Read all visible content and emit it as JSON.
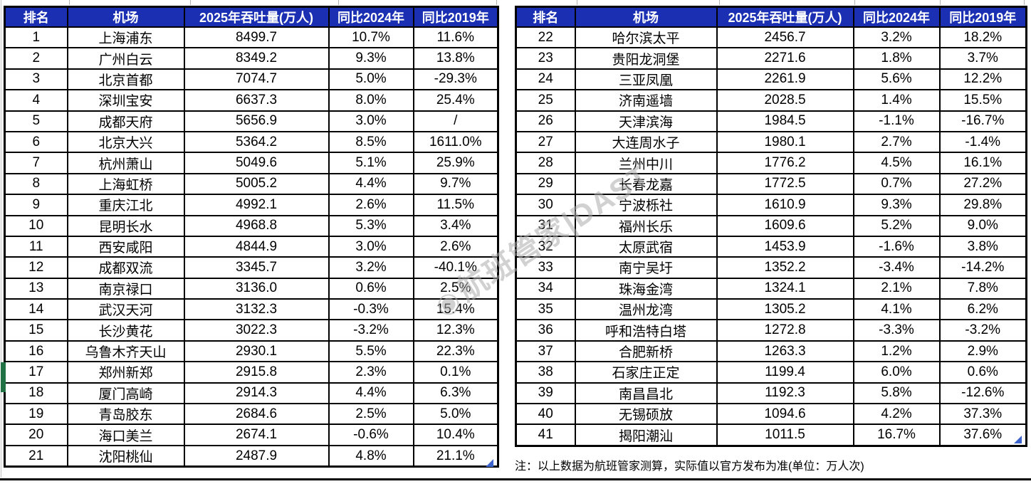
{
  "columns": [
    "排名",
    "机场",
    "2025年吞吐量(万人)",
    "同比2024年",
    "同比2019年"
  ],
  "left_table": {
    "rows": [
      [
        "1",
        "上海浦东",
        "8499.7",
        "10.7%",
        "11.6%"
      ],
      [
        "2",
        "广州白云",
        "8349.2",
        "9.3%",
        "13.8%"
      ],
      [
        "3",
        "北京首都",
        "7074.7",
        "5.0%",
        "-29.3%"
      ],
      [
        "4",
        "深圳宝安",
        "6637.3",
        "8.0%",
        "25.4%"
      ],
      [
        "5",
        "成都天府",
        "5656.9",
        "3.0%",
        "/"
      ],
      [
        "6",
        "北京大兴",
        "5364.2",
        "8.5%",
        "1611.0%"
      ],
      [
        "7",
        "杭州萧山",
        "5049.6",
        "5.1%",
        "25.9%"
      ],
      [
        "8",
        "上海虹桥",
        "5005.2",
        "4.4%",
        "9.7%"
      ],
      [
        "9",
        "重庆江北",
        "4992.1",
        "2.6%",
        "11.5%"
      ],
      [
        "10",
        "昆明长水",
        "4968.8",
        "5.3%",
        "3.4%"
      ],
      [
        "11",
        "西安咸阳",
        "4844.9",
        "3.0%",
        "2.6%"
      ],
      [
        "12",
        "成都双流",
        "3345.7",
        "3.2%",
        "-40.1%"
      ],
      [
        "13",
        "南京禄口",
        "3136.0",
        "0.6%",
        "2.5%"
      ],
      [
        "14",
        "武汉天河",
        "3132.3",
        "-0.3%",
        "15.4%"
      ],
      [
        "15",
        "长沙黄花",
        "3022.3",
        "-3.2%",
        "12.3%"
      ],
      [
        "16",
        "乌鲁木齐天山",
        "2930.1",
        "5.5%",
        "22.3%"
      ],
      [
        "17",
        "郑州新郑",
        "2915.8",
        "2.3%",
        "0.1%"
      ],
      [
        "18",
        "厦门高崎",
        "2914.3",
        "4.4%",
        "6.3%"
      ],
      [
        "19",
        "青岛胶东",
        "2684.6",
        "2.5%",
        "5.0%"
      ],
      [
        "20",
        "海口美兰",
        "2674.1",
        "-0.6%",
        "10.4%"
      ],
      [
        "21",
        "沈阳桃仙",
        "2487.9",
        "4.8%",
        "21.1%"
      ]
    ]
  },
  "right_table": {
    "rows": [
      [
        "22",
        "哈尔滨太平",
        "2456.7",
        "3.2%",
        "18.2%"
      ],
      [
        "23",
        "贵阳龙洞堡",
        "2271.6",
        "1.8%",
        "3.7%"
      ],
      [
        "24",
        "三亚凤凰",
        "2261.9",
        "5.6%",
        "12.2%"
      ],
      [
        "25",
        "济南遥墙",
        "2028.5",
        "1.4%",
        "15.5%"
      ],
      [
        "26",
        "天津滨海",
        "1984.5",
        "-1.1%",
        "-16.7%"
      ],
      [
        "27",
        "大连周水子",
        "1980.1",
        "2.7%",
        "-1.4%"
      ],
      [
        "28",
        "兰州中川",
        "1776.2",
        "4.5%",
        "16.1%"
      ],
      [
        "29",
        "长春龙嘉",
        "1772.5",
        "0.7%",
        "27.2%"
      ],
      [
        "30",
        "宁波栎社",
        "1610.9",
        "9.3%",
        "29.8%"
      ],
      [
        "31",
        "福州长乐",
        "1609.6",
        "5.2%",
        "9.0%"
      ],
      [
        "32",
        "太原武宿",
        "1453.9",
        "-1.6%",
        "3.8%"
      ],
      [
        "33",
        "南宁吴圩",
        "1352.2",
        "-3.4%",
        "-14.2%"
      ],
      [
        "34",
        "珠海金湾",
        "1324.1",
        "2.1%",
        "7.8%"
      ],
      [
        "35",
        "温州龙湾",
        "1305.2",
        "4.1%",
        "6.2%"
      ],
      [
        "36",
        "呼和浩特白塔",
        "1272.8",
        "-3.3%",
        "-3.2%"
      ],
      [
        "37",
        "合肥新桥",
        "1263.3",
        "1.2%",
        "2.9%"
      ],
      [
        "38",
        "石家庄正定",
        "1199.4",
        "6.0%",
        "0.6%"
      ],
      [
        "39",
        "南昌昌北",
        "1192.3",
        "5.8%",
        "-12.6%"
      ],
      [
        "40",
        "无锡硕放",
        "1094.6",
        "4.2%",
        "37.3%"
      ],
      [
        "41",
        "揭阳潮汕",
        "1011.5",
        "16.7%",
        "37.6%"
      ]
    ]
  },
  "note": "注：以上数据为航班管家测算，实际值以官方发布为准(单位：万人次)",
  "watermark": {
    "icon": "hbgj-logo-icon",
    "text": "航班管家|DAST"
  },
  "colors": {
    "header_bg": "#1b2fb3",
    "header_text": "#ffffff",
    "border": "#000000",
    "row_marker_green": "#217346",
    "fill_handle_blue": "#3c64cc"
  }
}
